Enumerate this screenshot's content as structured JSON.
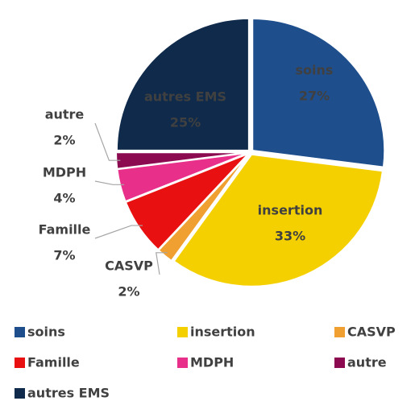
{
  "chart_data": {
    "type": "pie",
    "categories": [
      "soins",
      "insertion",
      "CASVP",
      "Famille",
      "MDPH",
      "autre",
      "autres EMS"
    ],
    "values": [
      27,
      33,
      2,
      7,
      4,
      2,
      25
    ],
    "value_labels": [
      "27%",
      "33%",
      "2%",
      "7%",
      "4%",
      "2%",
      "25%"
    ],
    "colors": [
      "#1f4e8c",
      "#f5d000",
      "#f0a030",
      "#e81010",
      "#e8308a",
      "#8b0a50",
      "#0f2a4a"
    ],
    "legend": "bottom"
  }
}
